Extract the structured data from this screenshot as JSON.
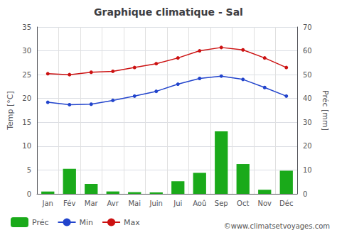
{
  "chart_data": {
    "type": "bar",
    "title": "Graphique climatique - Sal",
    "categories": [
      "Jan",
      "Fév",
      "Mar",
      "Avr",
      "Mai",
      "Juin",
      "Jui",
      "Aoû",
      "Sep",
      "Oct",
      "Nov",
      "Déc"
    ],
    "series": [
      {
        "name": "Préc",
        "type": "bar",
        "axis": "y2",
        "color": "#1aaa1a",
        "values": [
          1.0,
          10.5,
          4.2,
          1.0,
          0.7,
          0.6,
          5.3,
          8.8,
          26.2,
          12.5,
          1.7,
          9.7
        ]
      },
      {
        "name": "Min",
        "type": "line",
        "color": "#2244cc",
        "marker": "circle",
        "values": [
          19.2,
          18.7,
          18.8,
          19.6,
          20.5,
          21.5,
          23.0,
          24.2,
          24.7,
          24.0,
          22.3,
          20.5
        ]
      },
      {
        "name": "Max",
        "type": "line",
        "color": "#cc1111",
        "marker": "circle",
        "values": [
          25.2,
          25.0,
          25.5,
          25.7,
          26.5,
          27.3,
          28.5,
          30.0,
          30.7,
          30.2,
          28.5,
          26.5
        ]
      }
    ],
    "ylabel": "Temp [°C]",
    "y2label": "Préc [mm]",
    "ylim": [
      0,
      35
    ],
    "yticks": [
      0,
      5,
      10,
      15,
      20,
      25,
      30,
      35
    ],
    "y2lim": [
      0,
      70
    ],
    "y2ticks": [
      0,
      10,
      20,
      30,
      40,
      50,
      60,
      70
    ],
    "annotations": [
      "©www.climatsetvoyages.com"
    ],
    "legend": "bottom",
    "grid": true
  }
}
